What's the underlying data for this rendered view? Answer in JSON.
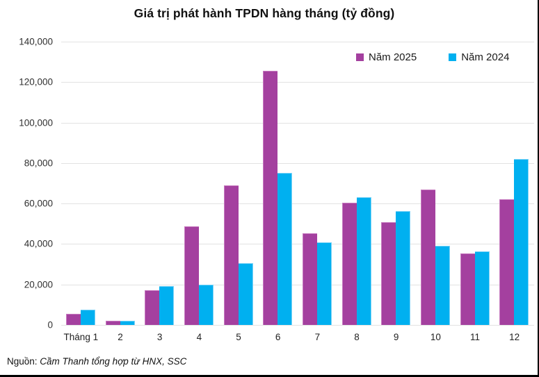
{
  "page": {
    "source_prefix": "Nguồn: ",
    "source_text": "Cầm Thanh tổng hợp từ HNX, SSC"
  },
  "chart_data": {
    "type": "bar",
    "title": "Giá trị phát hành TPDN hàng tháng (tỷ đồng)",
    "categories": [
      "Tháng 1",
      "2",
      "3",
      "4",
      "5",
      "6",
      "7",
      "8",
      "9",
      "10",
      "11",
      "12"
    ],
    "series": [
      {
        "name": "Năm 2025",
        "color": "#a4409f",
        "values": [
          5500,
          2200,
          17200,
          48700,
          69000,
          125500,
          45200,
          60500,
          50800,
          67000,
          35200,
          62000
        ]
      },
      {
        "name": "Năm 2024",
        "color": "#00b0f0",
        "values": [
          7700,
          2000,
          19200,
          20000,
          30500,
          75200,
          41000,
          63000,
          56200,
          39200,
          36500,
          82000
        ]
      }
    ],
    "xlabel": "",
    "ylabel": "",
    "ylim": [
      0,
      140000
    ],
    "ytick_step": 20000,
    "ytick_labels": [
      "0",
      "20,000",
      "40,000",
      "60,000",
      "80,000",
      "100,000",
      "120,000",
      "140,000"
    ],
    "grid": true,
    "legend_position": "top-right"
  }
}
